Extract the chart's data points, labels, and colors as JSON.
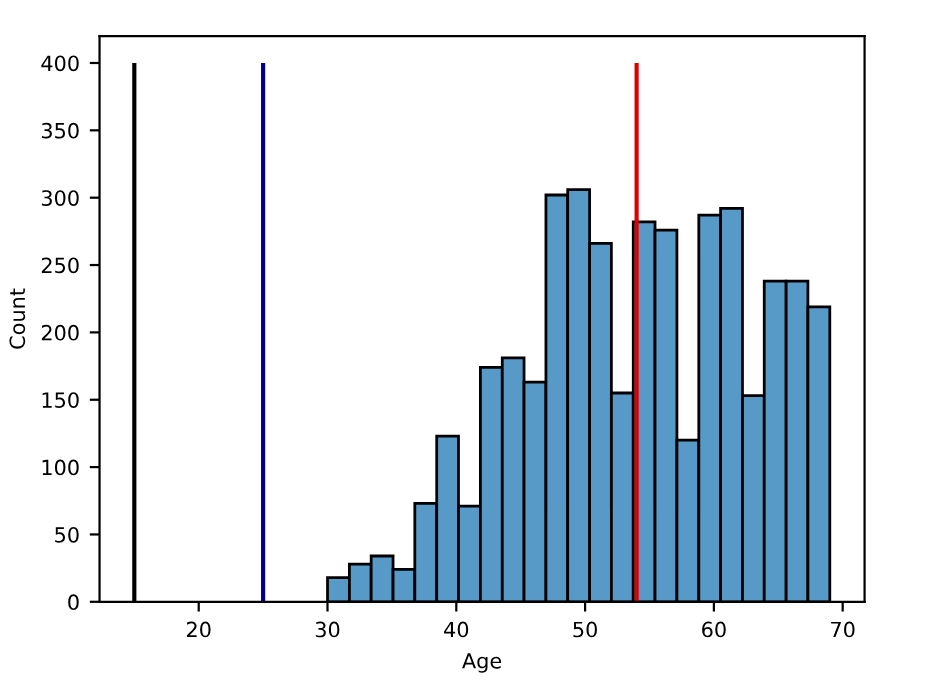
{
  "chart_data": {
    "type": "histogram",
    "xlabel": "Age",
    "ylabel": "Count",
    "bins": [
      30,
      31.7,
      33.39,
      35.09,
      36.78,
      38.48,
      40.17,
      41.87,
      43.57,
      45.26,
      46.96,
      48.65,
      50.35,
      52.04,
      53.74,
      55.43,
      57.13,
      58.83,
      60.52,
      62.22,
      63.91,
      65.61,
      67.3,
      69
    ],
    "values": [
      18,
      28,
      34,
      24,
      73,
      123,
      71,
      174,
      181,
      163,
      302,
      306,
      266,
      155,
      282,
      276,
      120,
      287,
      292,
      153,
      238,
      238,
      219
    ],
    "color": "#5799c7",
    "xlim": [
      12.3,
      71.7
    ],
    "xticks": [
      20,
      30,
      40,
      50,
      60,
      70
    ],
    "ylim": [
      0,
      420
    ],
    "yticks": [
      0,
      50,
      100,
      150,
      200,
      250,
      300,
      350,
      400
    ],
    "ref_lines": [
      {
        "axis": "x",
        "value": 15,
        "color": "#000000"
      },
      {
        "axis": "x",
        "value": 25,
        "color": "#00008b"
      },
      {
        "axis": "x",
        "value": 54,
        "color": "#dd0000"
      }
    ],
    "grid": false
  }
}
